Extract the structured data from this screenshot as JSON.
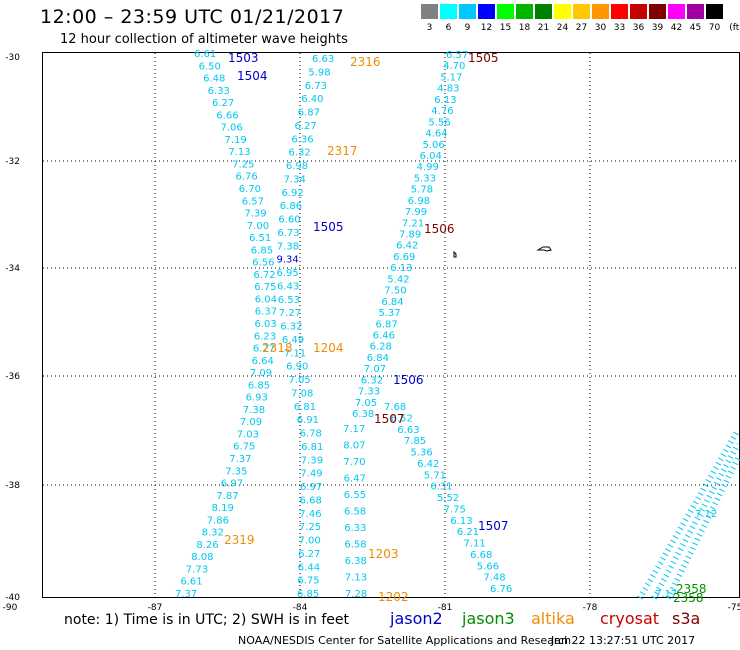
{
  "title": "12:00 – 23:59 UTC 01/21/2017",
  "subtitle": "12 hour collection of altimeter wave heights",
  "colors": {
    "cyan": "#00c8f0",
    "blue": "#0000cc",
    "dark_red": "#800000",
    "orange": "#f08c00",
    "green": "#009000",
    "red": "#cc0000"
  },
  "color_scale": {
    "unit": "(ft)",
    "labels": [
      "3",
      "6",
      "9",
      "12",
      "15",
      "18",
      "21",
      "24",
      "27",
      "30",
      "33",
      "36",
      "39",
      "42",
      "45",
      "70"
    ],
    "colors": [
      "#808080",
      "#00ffff",
      "#00c8ff",
      "#0000ff",
      "#00ff00",
      "#00b400",
      "#008000",
      "#ffff00",
      "#ffc800",
      "#ff9600",
      "#ff0000",
      "#c80000",
      "#800000",
      "#ff00ff",
      "#a000a0",
      "#000000"
    ]
  },
  "map": {
    "lat_labels": [
      "-30",
      "-32",
      "-34",
      "-36",
      "-38",
      "-40"
    ],
    "lon_labels": [
      "-90",
      "-87",
      "-84",
      "-81",
      "-78",
      "-75"
    ]
  },
  "tracks": [
    {
      "label": "1503",
      "color": "#0000cc"
    },
    {
      "label": "1504",
      "color": "#0000cc"
    },
    {
      "label": "2316",
      "color": "#f08c00"
    },
    {
      "label": "1505",
      "color": "#800000"
    },
    {
      "label": "2317",
      "color": "#f08c00"
    },
    {
      "label": "1505",
      "color": "#0000cc"
    },
    {
      "label": "1506",
      "color": "#800000"
    },
    {
      "label": "2318",
      "color": "#f08c00"
    },
    {
      "label": "1204",
      "color": "#f08c00"
    },
    {
      "label": "1506",
      "color": "#0000cc"
    },
    {
      "label": "1507",
      "color": "#800000"
    },
    {
      "label": "1507",
      "color": "#0000cc"
    },
    {
      "label": "2319",
      "color": "#f08c00"
    },
    {
      "label": "1203",
      "color": "#f08c00"
    },
    {
      "label": "1202",
      "color": "#f08c00"
    },
    {
      "label": "2358",
      "color": "#009000"
    },
    {
      "label": "2358",
      "color": "#009000"
    }
  ],
  "swh_values": [
    {
      "v": "6.61"
    },
    {
      "v": "6.50"
    },
    {
      "v": "6.48"
    },
    {
      "v": "6.33"
    },
    {
      "v": "6.27"
    },
    {
      "v": "6.66"
    },
    {
      "v": "7.06"
    },
    {
      "v": "7.19"
    },
    {
      "v": "7.13"
    },
    {
      "v": "7.25"
    },
    {
      "v": "6.76"
    },
    {
      "v": "6.70"
    },
    {
      "v": "6.57"
    },
    {
      "v": "7.39"
    },
    {
      "v": "7.00"
    },
    {
      "v": "6.51"
    },
    {
      "v": "6.85"
    },
    {
      "v": "6.56"
    },
    {
      "v": "6.72"
    },
    {
      "v": "6.75"
    },
    {
      "v": "6.04"
    },
    {
      "v": "6.37"
    },
    {
      "v": "6.03"
    },
    {
      "v": "6.23"
    },
    {
      "v": "6.77"
    },
    {
      "v": "6.64"
    },
    {
      "v": "7.09"
    },
    {
      "v": "6.85"
    },
    {
      "v": "6.93"
    },
    {
      "v": "7.38"
    },
    {
      "v": "7.09"
    },
    {
      "v": "7.03"
    },
    {
      "v": "6.75"
    },
    {
      "v": "7.37"
    },
    {
      "v": "7.35"
    },
    {
      "v": "6.97"
    },
    {
      "v": "7.87"
    },
    {
      "v": "8.19"
    },
    {
      "v": "7.86"
    },
    {
      "v": "8.32"
    },
    {
      "v": "8.26"
    },
    {
      "v": "8.08"
    },
    {
      "v": "7.73"
    },
    {
      "v": "6.61"
    },
    {
      "v": "7.37"
    },
    {
      "v": "6.63"
    },
    {
      "v": "5.98"
    },
    {
      "v": "6.73"
    },
    {
      "v": "6.40"
    },
    {
      "v": "6.87"
    },
    {
      "v": "6.27"
    },
    {
      "v": "6.36"
    },
    {
      "v": "6.32"
    },
    {
      "v": "6.98"
    },
    {
      "v": "7.34"
    },
    {
      "v": "6.92"
    },
    {
      "v": "6.86"
    },
    {
      "v": "6.60"
    },
    {
      "v": "6.73"
    },
    {
      "v": "7.38"
    },
    {
      "v": "9.34"
    },
    {
      "v": "6.95"
    },
    {
      "v": "6.43"
    },
    {
      "v": "6.53"
    },
    {
      "v": "7.27"
    },
    {
      "v": "6.32"
    },
    {
      "v": "6.49"
    },
    {
      "v": "7.11"
    },
    {
      "v": "6.90"
    },
    {
      "v": "7.05"
    },
    {
      "v": "7.08"
    },
    {
      "v": "6.81"
    },
    {
      "v": "6.91"
    },
    {
      "v": "6.78"
    },
    {
      "v": "6.81"
    },
    {
      "v": "7.39"
    },
    {
      "v": "7.49"
    },
    {
      "v": "6.97"
    },
    {
      "v": "6.68"
    },
    {
      "v": "7.46"
    },
    {
      "v": "7.25"
    },
    {
      "v": "7.00"
    },
    {
      "v": "6.27"
    },
    {
      "v": "6.44"
    },
    {
      "v": "6.75"
    },
    {
      "v": "6.85"
    },
    {
      "v": "6.57"
    },
    {
      "v": "4.70"
    },
    {
      "v": "5.17"
    },
    {
      "v": "4.83"
    },
    {
      "v": "6.13"
    },
    {
      "v": "4.76"
    },
    {
      "v": "5.56"
    },
    {
      "v": "4.64"
    },
    {
      "v": "5.06"
    },
    {
      "v": "6.04"
    },
    {
      "v": "4.99"
    },
    {
      "v": "5.33"
    },
    {
      "v": "5.78"
    },
    {
      "v": "6.98"
    },
    {
      "v": "7.99"
    },
    {
      "v": "7.21"
    },
    {
      "v": "7.89"
    },
    {
      "v": "6.42"
    },
    {
      "v": "6.69"
    },
    {
      "v": "6.13"
    },
    {
      "v": "5.42"
    },
    {
      "v": "7.50"
    },
    {
      "v": "6.84"
    },
    {
      "v": "5.37"
    },
    {
      "v": "6.87"
    },
    {
      "v": "6.46"
    },
    {
      "v": "6.28"
    },
    {
      "v": "6.84"
    },
    {
      "v": "7.07"
    },
    {
      "v": "6.32"
    },
    {
      "v": "7.33"
    },
    {
      "v": "7.05"
    },
    {
      "v": "6.38"
    },
    {
      "v": "7.17"
    },
    {
      "v": "8.07"
    },
    {
      "v": "7.70"
    },
    {
      "v": "6.47"
    },
    {
      "v": "6.55"
    },
    {
      "v": "6.58"
    },
    {
      "v": "6.33"
    },
    {
      "v": "6.58"
    },
    {
      "v": "6.38"
    },
    {
      "v": "7.13"
    },
    {
      "v": "7.28"
    },
    {
      "v": "7.68"
    },
    {
      "v": "6.52"
    },
    {
      "v": "6.63"
    },
    {
      "v": "7.85"
    },
    {
      "v": "5.36"
    },
    {
      "v": "6.42"
    },
    {
      "v": "5.71"
    },
    {
      "v": "6.31"
    },
    {
      "v": "5.52"
    },
    {
      "v": "7.75"
    },
    {
      "v": "6.13"
    },
    {
      "v": "6.21"
    },
    {
      "v": "7.11"
    },
    {
      "v": "6.68"
    },
    {
      "v": "5.66"
    },
    {
      "v": "7.48"
    },
    {
      "v": "6.76"
    },
    {
      "v": "7.17"
    },
    {
      "v": "7.12"
    },
    {
      "v": "7.00"
    }
  ],
  "note": "note: 1) Time is in UTC; 2) SWH is in feet",
  "legend": [
    {
      "label": "jason2",
      "color": "#0000cc"
    },
    {
      "label": "jason3",
      "color": "#009000"
    },
    {
      "label": "altika",
      "color": "#f08c00"
    },
    {
      "label": "cryosat",
      "color": "#cc0000"
    },
    {
      "label": "s3a",
      "color": "#800000"
    }
  ],
  "credit": "NOAA/NESDIS Center for Satellite Applications and Research",
  "timestamp": "Jan 22 13:27:51 UTC 2017"
}
